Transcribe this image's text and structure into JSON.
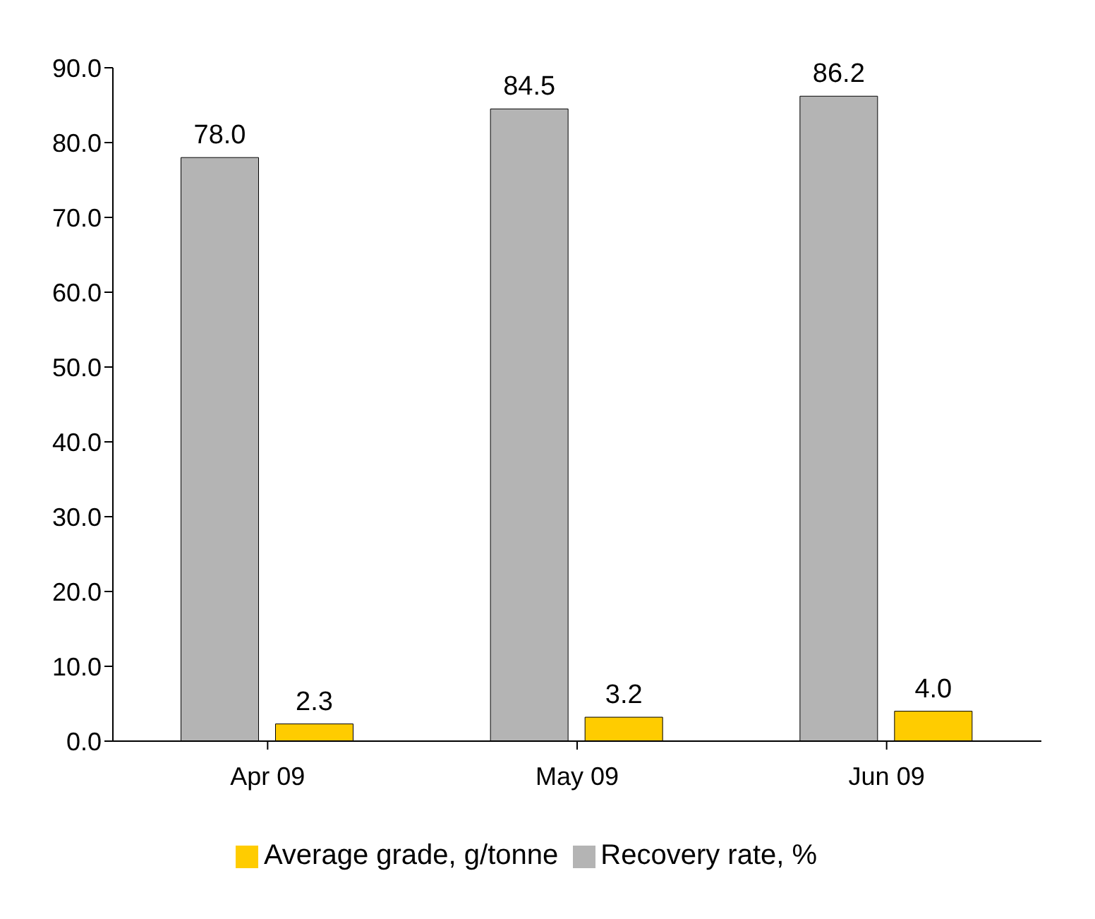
{
  "chart_data": {
    "type": "bar",
    "categories": [
      "Apr 09",
      "May 09",
      "Jun 09"
    ],
    "series": [
      {
        "name": "Recovery rate, %",
        "color": "#b4b4b4",
        "values": [
          78.0,
          84.5,
          86.2
        ],
        "value_labels": [
          "78.0",
          "84.5",
          "86.2"
        ]
      },
      {
        "name": "Average grade, g/tonne",
        "color": "#ffcc00",
        "values": [
          2.3,
          3.2,
          4.0
        ],
        "value_labels": [
          "2.3",
          "3.2",
          "4.0"
        ]
      }
    ],
    "ylim": [
      0,
      90
    ],
    "yticks": [
      {
        "value": 0,
        "label": "0.0"
      },
      {
        "value": 10,
        "label": "10.0"
      },
      {
        "value": 20,
        "label": "20.0"
      },
      {
        "value": 30,
        "label": "30.0"
      },
      {
        "value": 40,
        "label": "40.0"
      },
      {
        "value": 50,
        "label": "50.0"
      },
      {
        "value": 60,
        "label": "60.0"
      },
      {
        "value": 70,
        "label": "70.0"
      },
      {
        "value": 80,
        "label": "80.0"
      },
      {
        "value": 90,
        "label": "90.0"
      }
    ],
    "grid": false,
    "legend": "bottom"
  }
}
